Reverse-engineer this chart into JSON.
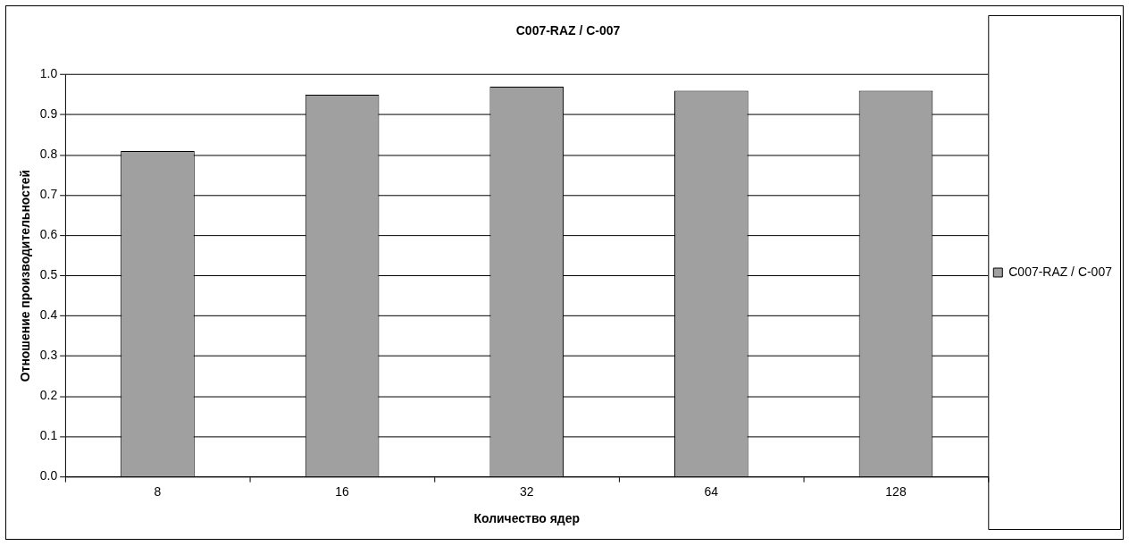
{
  "chart_data": {
    "type": "bar",
    "title": "C007-RAZ / C-007",
    "xlabel": "Количество ядер",
    "ylabel": "Отношение производительностей",
    "categories": [
      "8",
      "16",
      "32",
      "64",
      "128"
    ],
    "series": [
      {
        "name": "C007-RAZ / C-007",
        "color": "#a0a0a0",
        "values": [
          0.81,
          0.95,
          0.97,
          0.96,
          0.96
        ]
      }
    ],
    "ylim": [
      0,
      1
    ],
    "yticks": [
      {
        "value": 0,
        "label": "0.0"
      },
      {
        "value": 0.1,
        "label": "0.1"
      },
      {
        "value": 0.2,
        "label": "0.2"
      },
      {
        "value": 0.3,
        "label": "0.3"
      },
      {
        "value": 0.4,
        "label": "0.4"
      },
      {
        "value": 0.5,
        "label": "0.5"
      },
      {
        "value": 0.6,
        "label": "0.6"
      },
      {
        "value": 0.7,
        "label": "0.7"
      },
      {
        "value": 0.8,
        "label": "0.8"
      },
      {
        "value": 0.9,
        "label": "0.9"
      },
      {
        "value": 1,
        "label": "1.0"
      }
    ],
    "grid": "y",
    "legend": "right"
  }
}
